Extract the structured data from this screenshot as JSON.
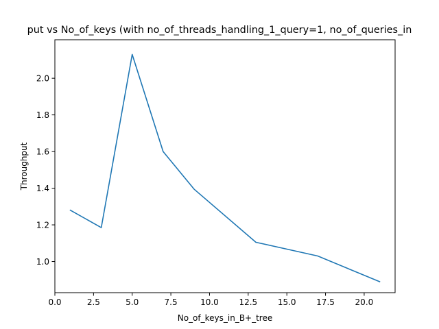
{
  "chart_data": {
    "type": "line",
    "title": "put vs No_of_keys (with no_of_threads_handling_1_query=1, no_of_queries_in",
    "xlabel": "No_of_keys_in_B+_tree",
    "ylabel": "Throughput",
    "xlim": [
      0.0,
      22.0
    ],
    "ylim": [
      0.83,
      2.21
    ],
    "x_ticks": [
      0.0,
      2.5,
      5.0,
      7.5,
      10.0,
      12.5,
      15.0,
      17.5,
      20.0
    ],
    "x_tick_labels": [
      "0.0",
      "2.5",
      "5.0",
      "7.5",
      "10.0",
      "12.5",
      "15.0",
      "17.5",
      "20.0"
    ],
    "y_ticks": [
      1.0,
      1.2,
      1.4,
      1.6,
      1.8,
      2.0
    ],
    "y_tick_labels": [
      "1.0",
      "1.2",
      "1.4",
      "1.6",
      "1.8",
      "2.0"
    ],
    "grid": false,
    "series": [
      {
        "color": "#1f77b4",
        "x": [
          1,
          3,
          5,
          7,
          9,
          13,
          17,
          21
        ],
        "y": [
          1.28,
          1.185,
          2.13,
          1.6,
          1.395,
          1.105,
          1.03,
          0.89
        ]
      }
    ]
  }
}
